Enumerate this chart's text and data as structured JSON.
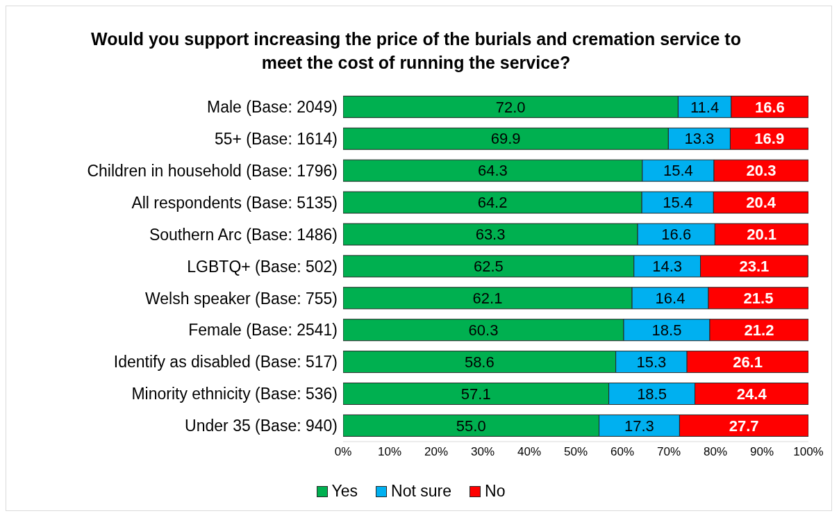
{
  "chart_data": {
    "type": "bar",
    "orientation": "horizontal",
    "stacked": true,
    "title": "Would you support increasing the price of the burials and cremation service to meet the cost of running the service?",
    "categories": [
      "Male (Base: 2049)",
      "55+ (Base: 1614)",
      "Children in household (Base: 1796)",
      "All respondents (Base: 5135)",
      "Southern Arc (Base: 1486)",
      "LGBTQ+ (Base: 502)",
      "Welsh speaker (Base: 755)",
      "Female (Base: 2541)",
      "Identify as disabled (Base: 517)",
      "Minority ethnicity (Base: 536)",
      "Under 35 (Base: 940)"
    ],
    "series": [
      {
        "name": "Yes",
        "color": "#00b050",
        "values": [
          72.0,
          69.9,
          64.3,
          64.2,
          63.3,
          62.5,
          62.1,
          60.3,
          58.6,
          57.1,
          55.0
        ],
        "value_labels": [
          "72.0",
          "69.9",
          "64.3",
          "64.2",
          "63.3",
          "62.5",
          "62.1",
          "60.3",
          "58.6",
          "57.1",
          "55.0"
        ]
      },
      {
        "name": "Not sure",
        "color": "#00b0f0",
        "values": [
          11.4,
          13.3,
          15.4,
          15.4,
          16.6,
          14.3,
          16.4,
          18.5,
          15.3,
          18.5,
          17.3
        ],
        "value_labels": [
          "11.4",
          "13.3",
          "15.4",
          "15.4",
          "16.6",
          "14.3",
          "16.4",
          "18.5",
          "15.3",
          "18.5",
          "17.3"
        ]
      },
      {
        "name": "No",
        "color": "#ff0000",
        "values": [
          16.6,
          16.9,
          20.3,
          20.4,
          20.1,
          23.1,
          21.5,
          21.2,
          26.1,
          24.4,
          27.7
        ],
        "value_labels": [
          "16.6",
          "16.9",
          "20.3",
          "20.4",
          "20.1",
          "23.1",
          "21.5",
          "21.2",
          "26.1",
          "24.4",
          "27.7"
        ]
      }
    ],
    "xlim": [
      0,
      100
    ],
    "xticks": [
      {
        "value": 0,
        "label": "0%"
      },
      {
        "value": 10,
        "label": "10%"
      },
      {
        "value": 20,
        "label": "20%"
      },
      {
        "value": 30,
        "label": "30%"
      },
      {
        "value": 40,
        "label": "40%"
      },
      {
        "value": 50,
        "label": "50%"
      },
      {
        "value": 60,
        "label": "60%"
      },
      {
        "value": 70,
        "label": "70%"
      },
      {
        "value": 80,
        "label": "80%"
      },
      {
        "value": 90,
        "label": "90%"
      },
      {
        "value": 100,
        "label": "100%"
      }
    ],
    "grid": false,
    "legend": "bottom"
  }
}
